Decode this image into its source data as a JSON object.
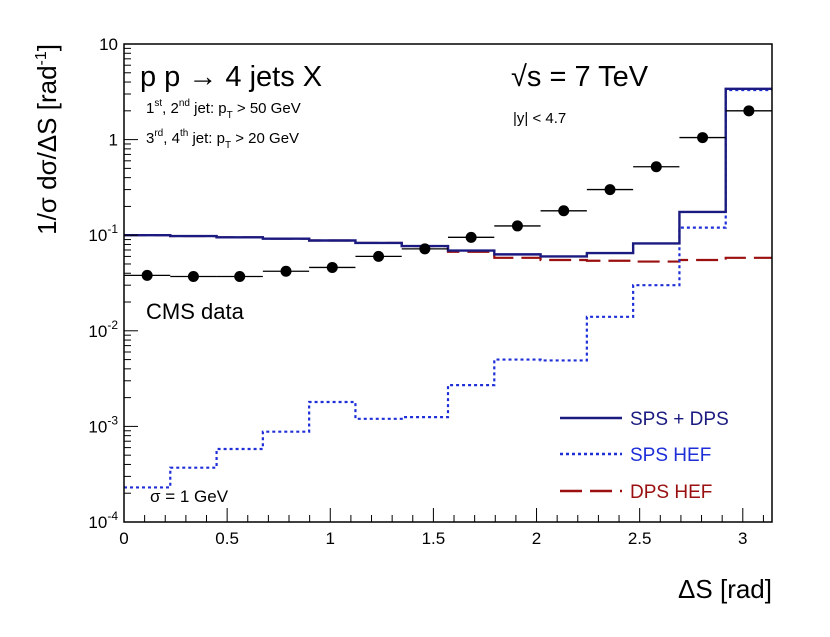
{
  "chart_data": {
    "type": "line",
    "xlabel": "ΔS   [rad]",
    "ylabel": "1/σ  dσ/ΔS   [rad",
    "ylabel_sup": "-1",
    "ylabel_close": "]",
    "xlim": [
      0,
      3.1416
    ],
    "ylim": [
      0.0001,
      10
    ],
    "yscale": "log",
    "x_ticks": [
      0,
      0.5,
      1,
      1.5,
      2,
      2.5,
      3
    ],
    "x_tick_labels": [
      "0",
      "0.5",
      "1",
      "1.5",
      "2",
      "2.5",
      "3"
    ],
    "y_ticks": [
      0.0001,
      0.001,
      0.01,
      0.1,
      1,
      10
    ],
    "y_tick_labels": [
      {
        "base": "10",
        "exp": "-4"
      },
      {
        "base": "10",
        "exp": "-3"
      },
      {
        "base": "10",
        "exp": "-2"
      },
      {
        "base": "10",
        "exp": "-1"
      },
      {
        "base": "1",
        "exp": ""
      },
      {
        "base": "10",
        "exp": ""
      }
    ],
    "grid": false,
    "legend_position": "bottom-right",
    "bin_edges": [
      0,
      0.2244,
      0.4488,
      0.6732,
      0.8976,
      1.122,
      1.3464,
      1.5708,
      1.7952,
      2.0196,
      2.244,
      2.4684,
      2.6928,
      2.9172,
      3.1416
    ],
    "series": [
      {
        "name": "CMS data",
        "kind": "points",
        "color": "#000000",
        "x": [
          0.1122,
          0.3366,
          0.561,
          0.7854,
          1.0098,
          1.2342,
          1.4586,
          1.683,
          1.9074,
          2.1318,
          2.3562,
          2.5806,
          2.805,
          3.0294
        ],
        "y": [
          0.038,
          0.037,
          0.037,
          0.042,
          0.046,
          0.06,
          0.072,
          0.095,
          0.125,
          0.18,
          0.3,
          0.52,
          1.05,
          2.0
        ]
      },
      {
        "name": "SPS + DPS",
        "kind": "step",
        "color": "#1a1a80",
        "dash": "solid",
        "values": [
          0.1,
          0.098,
          0.095,
          0.092,
          0.088,
          0.083,
          0.077,
          0.069,
          0.063,
          0.06,
          0.065,
          0.082,
          0.175,
          3.4
        ]
      },
      {
        "name": "SPS HEF",
        "kind": "step",
        "color": "#1f2fd8",
        "dash": "dotted",
        "values": [
          0.00023,
          0.00037,
          0.00058,
          0.00088,
          0.0018,
          0.0012,
          0.00125,
          0.0027,
          0.005,
          0.0049,
          0.014,
          0.03,
          0.12,
          3.3
        ]
      },
      {
        "name": "DPS HEF",
        "kind": "step",
        "color": "#9a0f0f",
        "dash": "long-dash",
        "values": [
          0.1,
          0.098,
          0.095,
          0.092,
          0.088,
          0.083,
          0.077,
          0.067,
          0.058,
          0.055,
          0.054,
          0.053,
          0.055,
          0.058
        ]
      }
    ],
    "annotations": {
      "process": "p p → 4 jets X",
      "energy": "√s = 7 TeV",
      "rapidity": "|y| < 4.7",
      "cut1": {
        "a": "1",
        "a_sup": "st",
        "b": ", 2",
        "b_sup": "nd",
        "c": " jet: p",
        "c_sub": "T",
        "d": " > 50 GeV"
      },
      "cut2": {
        "a": "3",
        "a_sup": "rd",
        "b": ", 4",
        "b_sup": "th",
        "c": " jet: p",
        "c_sub": "T",
        "d": " > 20 GeV"
      },
      "data_label": "CMS data",
      "sigma_label": "σ = 1 GeV"
    }
  }
}
